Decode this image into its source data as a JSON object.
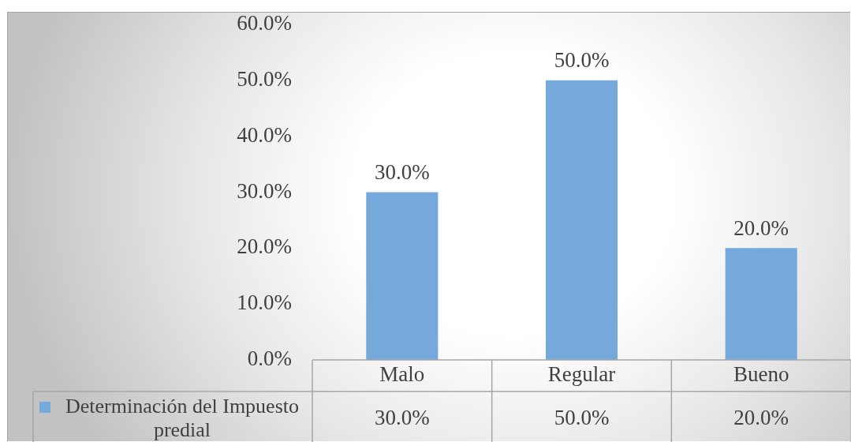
{
  "chart_data": {
    "type": "bar",
    "categories": [
      "Malo",
      "Regular",
      "Bueno"
    ],
    "series": [
      {
        "name": "Determinación del Impuesto predial",
        "color": "#75a8db",
        "values": [
          30,
          50,
          20
        ],
        "value_labels": [
          "30.0%",
          "50.0%",
          "20.0%"
        ]
      }
    ],
    "ylim": [
      0,
      60
    ],
    "yticks": [
      {
        "value": 0,
        "label": "0.0%"
      },
      {
        "value": 10,
        "label": "10.0%"
      },
      {
        "value": 20,
        "label": "20.0%"
      },
      {
        "value": 30,
        "label": "30.0%"
      },
      {
        "value": 40,
        "label": "40.0%"
      },
      {
        "value": 50,
        "label": "50.0%"
      },
      {
        "value": 60,
        "label": "60.0%"
      }
    ],
    "legend": "bottom left"
  }
}
